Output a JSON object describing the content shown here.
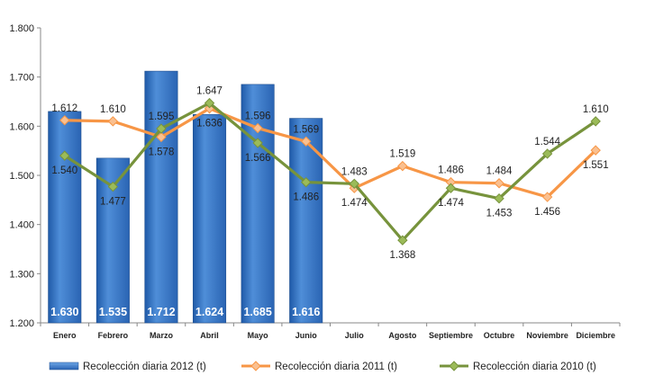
{
  "chart_data": {
    "type": "bar",
    "categories": [
      "Enero",
      "Febrero",
      "Marzo",
      "Abril",
      "Mayo",
      "Junio",
      "Julio",
      "Agosto",
      "Septiembre",
      "Octubre",
      "Noviembre",
      "Diciembre"
    ],
    "ylim": [
      1200,
      1800
    ],
    "yticks": [
      1200,
      1300,
      1400,
      1500,
      1600,
      1700,
      1800
    ],
    "ytick_labels": [
      "1.200",
      "1.300",
      "1.400",
      "1.500",
      "1.600",
      "1.700",
      "1.800"
    ],
    "grid": false,
    "legend_position": "bottom",
    "series": [
      {
        "name": "Recolección diaria  2012 (t)",
        "type": "bar",
        "color": "#2e6fc0",
        "values": [
          1630,
          1535,
          1712,
          1624,
          1685,
          1616,
          null,
          null,
          null,
          null,
          null,
          null
        ],
        "labels": [
          "1.630",
          "1.535",
          "1.712",
          "1.624",
          "1.685",
          "1.616"
        ]
      },
      {
        "name": "Recolección diaria  2011 (t)",
        "type": "line",
        "color": "#f79646",
        "marker_color": "#fac090",
        "values": [
          1612,
          1610,
          1578,
          1636,
          1596,
          1569,
          1474,
          1519,
          1486,
          1484,
          1456,
          1551
        ],
        "labels": [
          "1.612",
          "1.610",
          "1.578",
          "1.636",
          "1.596",
          "1.569",
          "1.474",
          "1.519",
          "1.486",
          "1.484",
          "1.456",
          "1.551"
        ]
      },
      {
        "name": "Recolección diaria 2010 (t)",
        "type": "line",
        "color": "#77933c",
        "marker_color": "#9bbb59",
        "values": [
          1540,
          1477,
          1595,
          1647,
          1566,
          1486,
          1483,
          1368,
          1474,
          1453,
          1544,
          1610
        ],
        "labels": [
          "1.540",
          "1.477",
          "1.595",
          "1.647",
          "1.566",
          "1.486",
          "1.483",
          "1.368",
          "1.474",
          "1.453",
          "1.544",
          "1.610"
        ]
      }
    ]
  }
}
